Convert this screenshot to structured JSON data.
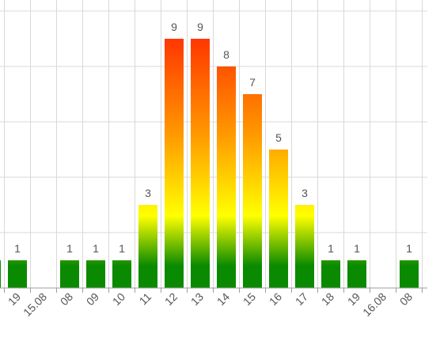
{
  "chart_data": {
    "type": "bar",
    "categories": [
      "",
      "19",
      "15.08",
      "08",
      "09",
      "10",
      "11",
      "12",
      "13",
      "14",
      "15",
      "16",
      "17",
      "18",
      "19",
      "16.08",
      "08"
    ],
    "values": [
      1,
      1,
      0,
      1,
      1,
      1,
      3,
      9,
      9,
      8,
      7,
      5,
      3,
      1,
      1,
      0,
      1
    ],
    "data_labels": [
      "",
      "1",
      "",
      "1",
      "1",
      "1",
      "3",
      "9",
      "9",
      "8",
      "7",
      "5",
      "3",
      "1",
      "1",
      "",
      "1"
    ],
    "ylim": [
      0,
      10
    ],
    "grid": true,
    "legend": "none",
    "title": "",
    "xlabel": "",
    "ylabel": "",
    "colors": {
      "low": "#0a8a00",
      "mid": "#ffff00",
      "high": "#ff1a00",
      "grid": "#d9d9d9",
      "axis": "#9e9e9e",
      "text": "#555555"
    }
  }
}
